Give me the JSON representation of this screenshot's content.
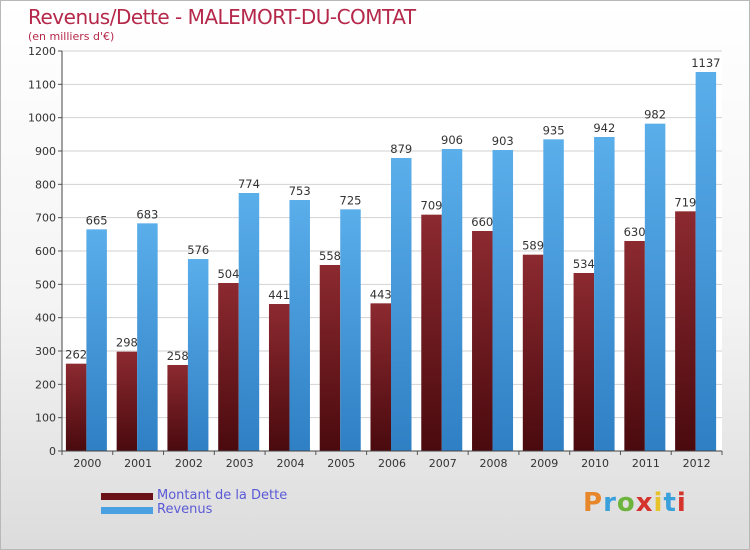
{
  "title": "Revenus/Dette - MALEMORT-DU-COMTAT",
  "subtitle": "(en milliers d'€)",
  "logo_text": "Proxiti",
  "chart_data": {
    "type": "bar",
    "categories": [
      "2000",
      "2001",
      "2002",
      "2003",
      "2004",
      "2005",
      "2006",
      "2007",
      "2008",
      "2009",
      "2010",
      "2011",
      "2012"
    ],
    "series": [
      {
        "name": "Montant de la Dette",
        "color": "#7a1a22",
        "values": [
          262,
          298,
          258,
          504,
          441,
          558,
          443,
          709,
          660,
          589,
          534,
          630,
          719
        ]
      },
      {
        "name": "Revenus",
        "color": "#4aa0e0",
        "values": [
          665,
          683,
          576,
          774,
          753,
          725,
          879,
          906,
          903,
          935,
          942,
          982,
          1137
        ]
      }
    ],
    "ylim": [
      0,
      1200
    ],
    "yticks": [
      0,
      100,
      200,
      300,
      400,
      500,
      600,
      700,
      800,
      900,
      1000,
      1100,
      1200
    ],
    "grid": true,
    "legend_position": "bottom-left"
  }
}
